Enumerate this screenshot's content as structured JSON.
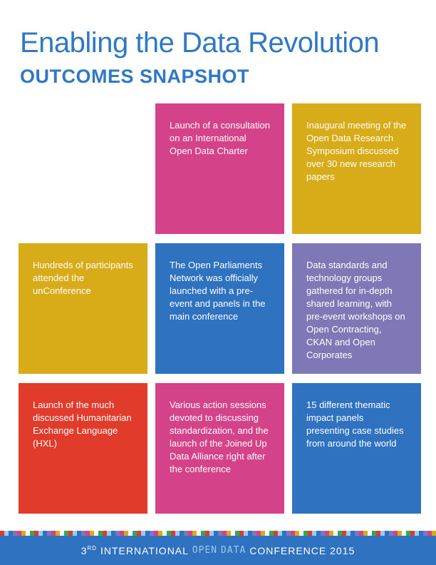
{
  "header": {
    "title": "Enabling the Data Revolution",
    "subtitle": "OUTCOMES SNAPSHOT"
  },
  "tiles": [
    {
      "text": "Launch of a consultation on an International Open Data Charter",
      "color": "#d4428a"
    },
    {
      "text": "Inaugural meeting of the Open Data Research Symposium discussed over 30 new research papers",
      "color": "#d8ac18"
    },
    {
      "text": "Hundreds of participants attended the unConference",
      "color": "#d8ac18"
    },
    {
      "text": "The Open Parliaments Network was officially launched with a pre-event and panels in the main conference",
      "color": "#2f72c0"
    },
    {
      "text": "Data standards and technology groups gathered for in-depth shared learning, with pre-event workshops on Open Contracting, CKAN and Open Corporates",
      "color": "#7f78b6"
    },
    {
      "text": "Launch of the much discussed Humanitarian Exchange Language (HXL)",
      "color": "#e03b2b"
    },
    {
      "text": "Various action sessions devoted to discussing standardization, and the launch of the Joined Up Data Alliance right after the conference",
      "color": "#d4428a"
    },
    {
      "text": "15 different thematic impact panels presenting case studies from around the world",
      "color": "#2f72c0"
    }
  ],
  "footer": {
    "ordinal_number": "3",
    "ordinal_suffix": "RD",
    "word_international": "INTERNATIONAL",
    "word_open": "OPEN",
    "word_data": "DATA",
    "word_conference": "CONFERENCE 2015"
  },
  "colors": {
    "title_blue": "#2f78c4",
    "pink": "#d4428a",
    "yellow": "#d8ac18",
    "blue": "#2f72c0",
    "purple": "#7f78b6",
    "red": "#e03b2b"
  }
}
